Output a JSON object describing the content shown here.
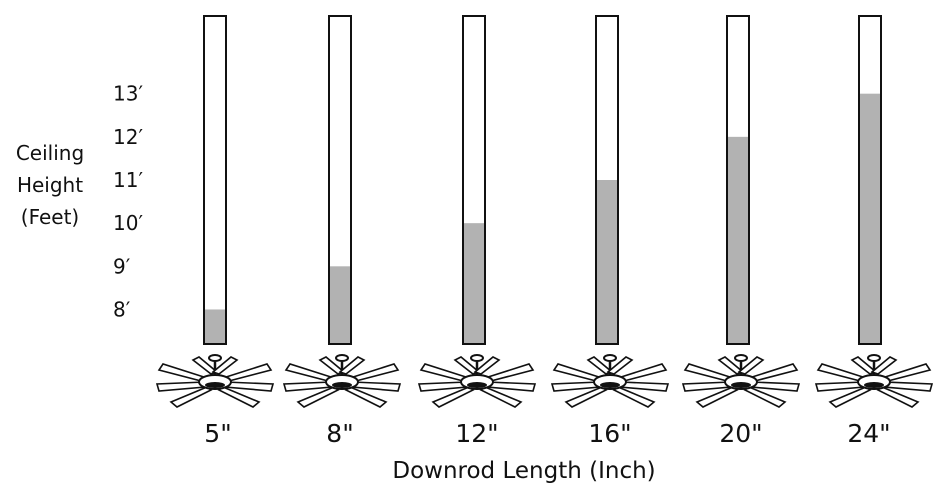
{
  "chart_data": {
    "type": "bar",
    "ylabel_lines": [
      "Ceiling",
      "Height",
      "(Feet)"
    ],
    "xlabel": "Downrod Length (Inch)",
    "categories": [
      "5\"",
      "8\"",
      "12\"",
      "16\"",
      "20\"",
      "24\""
    ],
    "y_ticks": [
      {
        "label": "8′",
        "value": 8
      },
      {
        "label": "9′",
        "value": 9
      },
      {
        "label": "10′",
        "value": 10
      },
      {
        "label": "11′",
        "value": 11
      },
      {
        "label": "12′",
        "value": 12
      },
      {
        "label": "13′",
        "value": 13
      }
    ],
    "values": [
      8,
      9,
      10,
      11,
      12,
      13
    ],
    "ylim": [
      7.2,
      14.8
    ],
    "grid": false,
    "colors": {
      "fill": "#b2b2b2",
      "outline": "#111111",
      "background": "#ffffff"
    },
    "icon": "ceiling-fan-icon"
  }
}
